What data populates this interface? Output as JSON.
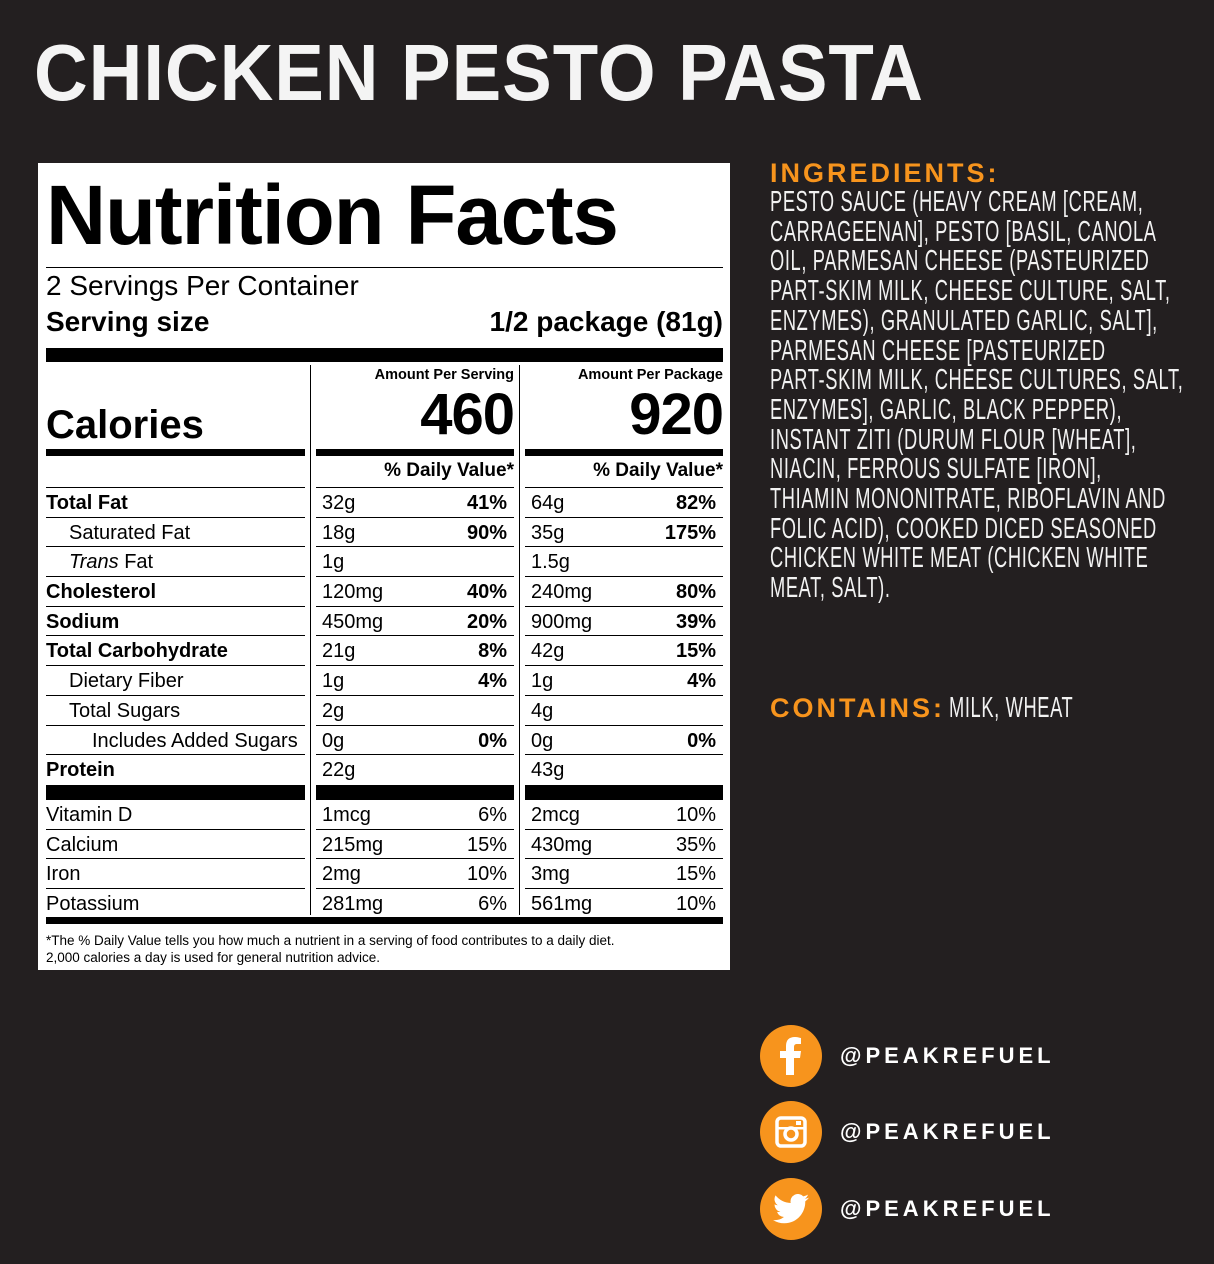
{
  "title": "CHICKEN PESTO PASTA",
  "colors": {
    "background": "#231f20",
    "accent": "#f7941d",
    "label_bg": "#ffffff"
  },
  "nutrition": {
    "heading": "Nutrition Facts",
    "servings_per_container": "2 Servings Per Container",
    "serving_size_label": "Serving size",
    "serving_size_value": "1/2 package (81g)",
    "calories_label": "Calories",
    "per_serving_label": "Amount Per Serving",
    "per_package_label": "Amount Per Package",
    "calories_serving": "460",
    "calories_package": "920",
    "daily_value_label": "% Daily Value*",
    "nutrients": [
      {
        "name": "Total Fat",
        "bold": true,
        "indent": 0,
        "serving": "32g",
        "serving_pct": "41%",
        "package": "64g",
        "package_pct": "82%"
      },
      {
        "name": "Saturated Fat",
        "bold": false,
        "indent": 1,
        "serving": "18g",
        "serving_pct": "90%",
        "package": "35g",
        "package_pct": "175%"
      },
      {
        "name": "Trans Fat",
        "bold": false,
        "indent": 1,
        "italic_prefix": "Trans",
        "serving": "1g",
        "serving_pct": "",
        "package": "1.5g",
        "package_pct": ""
      },
      {
        "name": "Cholesterol",
        "bold": true,
        "indent": 0,
        "serving": "120mg",
        "serving_pct": "40%",
        "package": "240mg",
        "package_pct": "80%"
      },
      {
        "name": "Sodium",
        "bold": true,
        "indent": 0,
        "serving": "450mg",
        "serving_pct": "20%",
        "package": "900mg",
        "package_pct": "39%"
      },
      {
        "name": "Total Carbohydrate",
        "bold": true,
        "indent": 0,
        "serving": "21g",
        "serving_pct": "8%",
        "package": "42g",
        "package_pct": "15%"
      },
      {
        "name": "Dietary Fiber",
        "bold": false,
        "indent": 1,
        "serving": "1g",
        "serving_pct": "4%",
        "package": "1g",
        "package_pct": "4%"
      },
      {
        "name": "Total Sugars",
        "bold": false,
        "indent": 1,
        "serving": "2g",
        "serving_pct": "",
        "package": "4g",
        "package_pct": ""
      },
      {
        "name": "Includes Added Sugars",
        "bold": false,
        "indent": 2,
        "serving": "0g",
        "serving_pct": "0%",
        "package": "0g",
        "package_pct": "0%"
      },
      {
        "name": "Protein",
        "bold": true,
        "indent": 0,
        "serving": "22g",
        "serving_pct": "",
        "package": "43g",
        "package_pct": ""
      }
    ],
    "vitamins": [
      {
        "name": "Vitamin D",
        "serving": "1mcg",
        "serving_pct": "6%",
        "package": "2mcg",
        "package_pct": "10%"
      },
      {
        "name": "Calcium",
        "serving": "215mg",
        "serving_pct": "15%",
        "package": "430mg",
        "package_pct": "35%"
      },
      {
        "name": "Iron",
        "serving": "2mg",
        "serving_pct": "10%",
        "package": "3mg",
        "package_pct": "15%"
      },
      {
        "name": "Potassium",
        "serving": "281mg",
        "serving_pct": "6%",
        "package": "561mg",
        "package_pct": "10%"
      }
    ],
    "footnote_1": "*The % Daily Value tells you how much a nutrient in a serving of food contributes to a daily diet.",
    "footnote_2": "2,000 calories a day is used for general nutrition advice."
  },
  "ingredients": {
    "heading": "INGREDIENTS:",
    "lines": [
      "PESTO SAUCE (HEAVY CREAM [CREAM,",
      "CARRAGEENAN], PESTO [BASIL, CANOLA",
      "OIL, PARMESAN CHEESE (PASTEURIZED",
      "PART-SKIM MILK, CHEESE CULTURE, SALT,",
      "ENZYMES), GRANULATED GARLIC, SALT],",
      "PARMESAN CHEESE [PASTEURIZED",
      "PART-SKIM MILK, CHEESE CULTURES, SALT,",
      "ENZYMES], GARLIC, BLACK PEPPER),",
      "INSTANT ZITI (DURUM FLOUR [WHEAT],",
      "NIACIN, FERROUS SULFATE [IRON],",
      "THIAMIN MONONITRATE, RIBOFLAVIN AND",
      "FOLIC ACID), COOKED DICED SEASONED",
      "CHICKEN WHITE MEAT (CHICKEN WHITE",
      "MEAT, SALT)."
    ]
  },
  "contains": {
    "label": "CONTAINS:",
    "value": "MILK, WHEAT"
  },
  "social": [
    {
      "icon": "facebook-icon",
      "handle": "@PEAKREFUEL"
    },
    {
      "icon": "instagram-icon",
      "handle": "@PEAKREFUEL"
    },
    {
      "icon": "twitter-icon",
      "handle": "@PEAKREFUEL"
    }
  ]
}
